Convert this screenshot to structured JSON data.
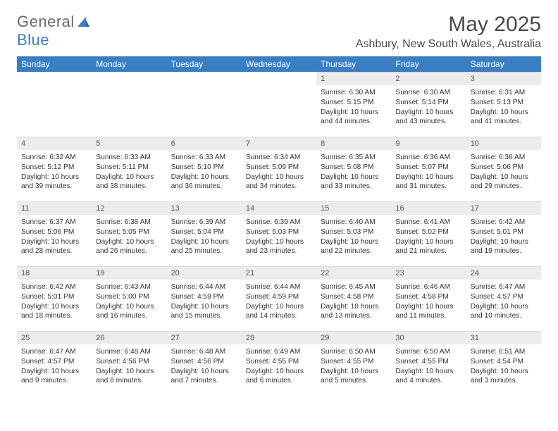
{
  "brand": {
    "part1": "General",
    "part2": "Blue"
  },
  "title": "May 2025",
  "location": "Ashbury, New South Wales, Australia",
  "colors": {
    "header_bg": "#3a7fc2",
    "header_text": "#ffffff",
    "daynum_bg": "#ececec",
    "body_text": "#333333",
    "logo_gray": "#6a6a6a",
    "logo_blue": "#3a7fc2"
  },
  "weekdays": [
    "Sunday",
    "Monday",
    "Tuesday",
    "Wednesday",
    "Thursday",
    "Friday",
    "Saturday"
  ],
  "grid": {
    "first_weekday_index": 4,
    "days_in_month": 31
  },
  "days": {
    "1": {
      "sunrise": "6:30 AM",
      "sunset": "5:15 PM",
      "daylight": "10 hours and 44 minutes."
    },
    "2": {
      "sunrise": "6:30 AM",
      "sunset": "5:14 PM",
      "daylight": "10 hours and 43 minutes."
    },
    "3": {
      "sunrise": "6:31 AM",
      "sunset": "5:13 PM",
      "daylight": "10 hours and 41 minutes."
    },
    "4": {
      "sunrise": "6:32 AM",
      "sunset": "5:12 PM",
      "daylight": "10 hours and 39 minutes."
    },
    "5": {
      "sunrise": "6:33 AM",
      "sunset": "5:11 PM",
      "daylight": "10 hours and 38 minutes."
    },
    "6": {
      "sunrise": "6:33 AM",
      "sunset": "5:10 PM",
      "daylight": "10 hours and 36 minutes."
    },
    "7": {
      "sunrise": "6:34 AM",
      "sunset": "5:09 PM",
      "daylight": "10 hours and 34 minutes."
    },
    "8": {
      "sunrise": "6:35 AM",
      "sunset": "5:08 PM",
      "daylight": "10 hours and 33 minutes."
    },
    "9": {
      "sunrise": "6:36 AM",
      "sunset": "5:07 PM",
      "daylight": "10 hours and 31 minutes."
    },
    "10": {
      "sunrise": "6:36 AM",
      "sunset": "5:06 PM",
      "daylight": "10 hours and 29 minutes."
    },
    "11": {
      "sunrise": "6:37 AM",
      "sunset": "5:06 PM",
      "daylight": "10 hours and 28 minutes."
    },
    "12": {
      "sunrise": "6:38 AM",
      "sunset": "5:05 PM",
      "daylight": "10 hours and 26 minutes."
    },
    "13": {
      "sunrise": "6:39 AM",
      "sunset": "5:04 PM",
      "daylight": "10 hours and 25 minutes."
    },
    "14": {
      "sunrise": "6:39 AM",
      "sunset": "5:03 PM",
      "daylight": "10 hours and 23 minutes."
    },
    "15": {
      "sunrise": "6:40 AM",
      "sunset": "5:03 PM",
      "daylight": "10 hours and 22 minutes."
    },
    "16": {
      "sunrise": "6:41 AM",
      "sunset": "5:02 PM",
      "daylight": "10 hours and 21 minutes."
    },
    "17": {
      "sunrise": "6:42 AM",
      "sunset": "5:01 PM",
      "daylight": "10 hours and 19 minutes."
    },
    "18": {
      "sunrise": "6:42 AM",
      "sunset": "5:01 PM",
      "daylight": "10 hours and 18 minutes."
    },
    "19": {
      "sunrise": "6:43 AM",
      "sunset": "5:00 PM",
      "daylight": "10 hours and 16 minutes."
    },
    "20": {
      "sunrise": "6:44 AM",
      "sunset": "4:59 PM",
      "daylight": "10 hours and 15 minutes."
    },
    "21": {
      "sunrise": "6:44 AM",
      "sunset": "4:59 PM",
      "daylight": "10 hours and 14 minutes."
    },
    "22": {
      "sunrise": "6:45 AM",
      "sunset": "4:58 PM",
      "daylight": "10 hours and 13 minutes."
    },
    "23": {
      "sunrise": "6:46 AM",
      "sunset": "4:58 PM",
      "daylight": "10 hours and 11 minutes."
    },
    "24": {
      "sunrise": "6:47 AM",
      "sunset": "4:57 PM",
      "daylight": "10 hours and 10 minutes."
    },
    "25": {
      "sunrise": "6:47 AM",
      "sunset": "4:57 PM",
      "daylight": "10 hours and 9 minutes."
    },
    "26": {
      "sunrise": "6:48 AM",
      "sunset": "4:56 PM",
      "daylight": "10 hours and 8 minutes."
    },
    "27": {
      "sunrise": "6:48 AM",
      "sunset": "4:56 PM",
      "daylight": "10 hours and 7 minutes."
    },
    "28": {
      "sunrise": "6:49 AM",
      "sunset": "4:55 PM",
      "daylight": "10 hours and 6 minutes."
    },
    "29": {
      "sunrise": "6:50 AM",
      "sunset": "4:55 PM",
      "daylight": "10 hours and 5 minutes."
    },
    "30": {
      "sunrise": "6:50 AM",
      "sunset": "4:55 PM",
      "daylight": "10 hours and 4 minutes."
    },
    "31": {
      "sunrise": "6:51 AM",
      "sunset": "4:54 PM",
      "daylight": "10 hours and 3 minutes."
    }
  },
  "labels": {
    "sunrise": "Sunrise:",
    "sunset": "Sunset:",
    "daylight": "Daylight:"
  }
}
